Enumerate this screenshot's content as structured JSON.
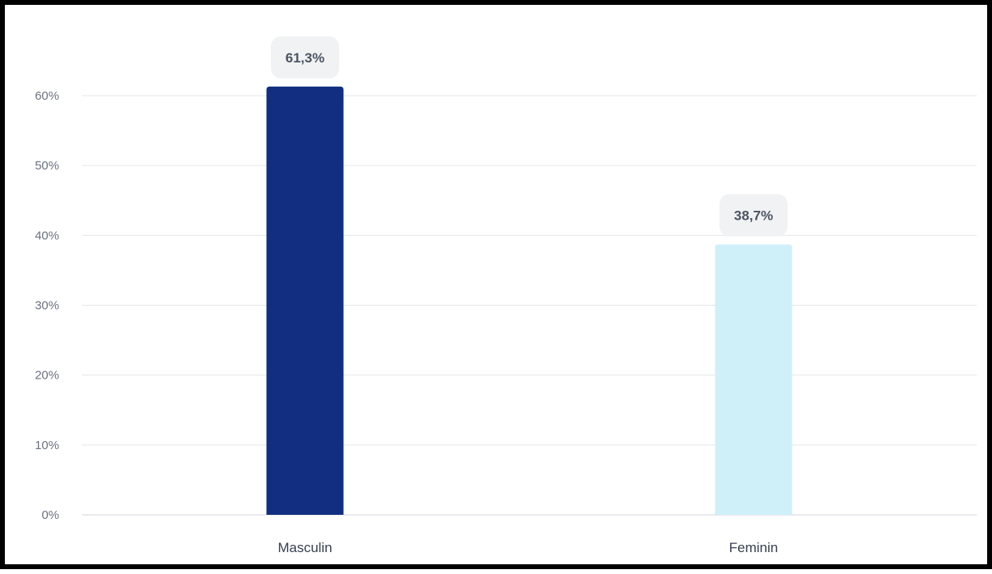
{
  "chart_data": {
    "type": "bar",
    "categories": [
      "Masculin",
      "Feminin"
    ],
    "values": [
      61.3,
      38.7
    ],
    "data_labels": [
      "61,3%",
      "38,7%"
    ],
    "bar_colors": [
      "#112e80",
      "#cff0f8"
    ],
    "ylim": [
      0,
      60
    ],
    "yticks": [
      0,
      10,
      20,
      30,
      40,
      50,
      60
    ],
    "ytick_labels": [
      "0%",
      "10%",
      "20%",
      "30%",
      "40%",
      "50%",
      "60%"
    ],
    "grid": true,
    "legend": "none",
    "title": "",
    "xlabel": "",
    "ylabel": ""
  }
}
